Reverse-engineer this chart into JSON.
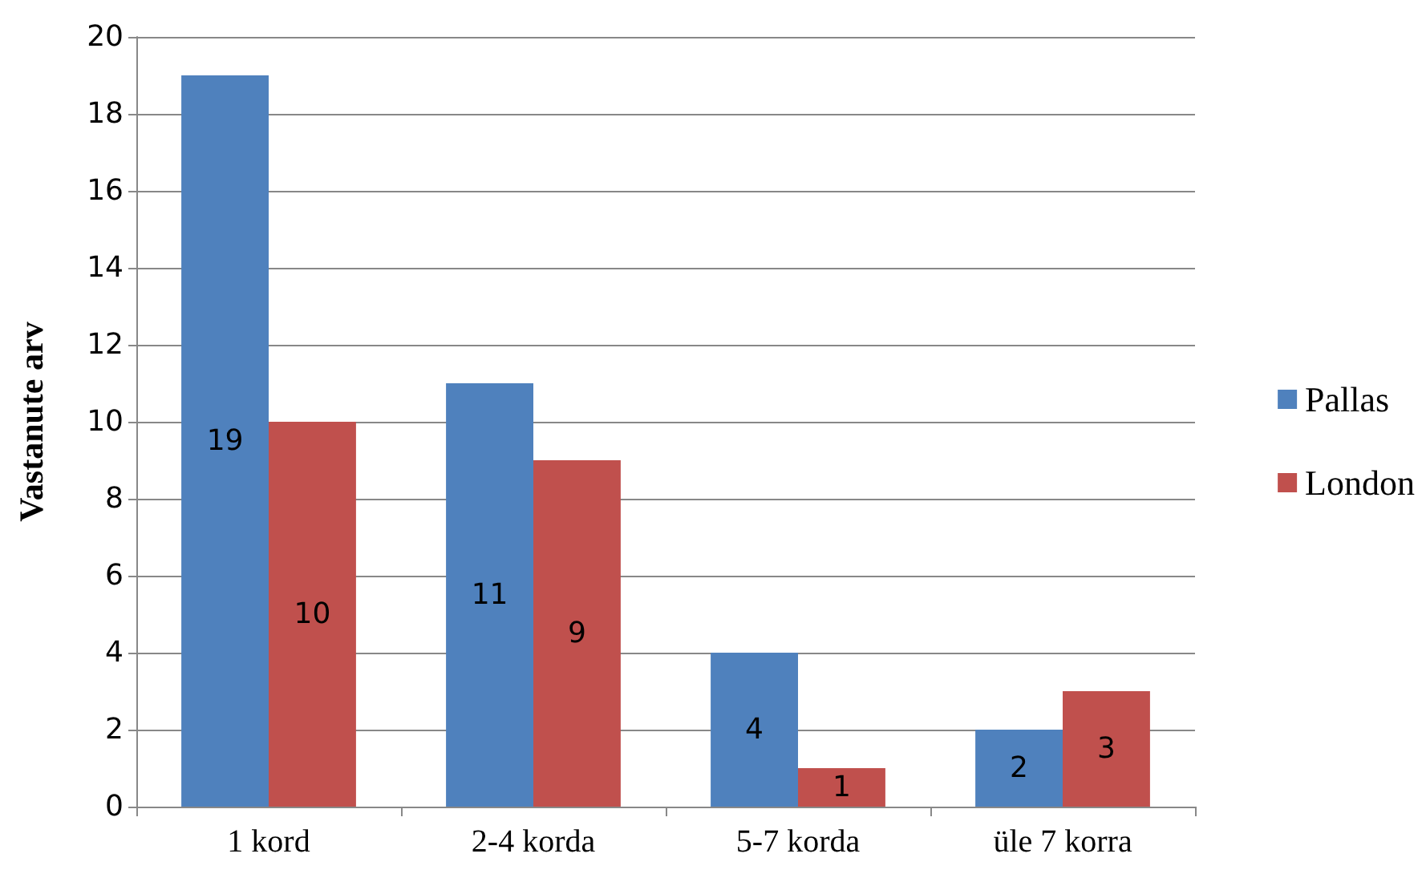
{
  "chart_data": {
    "type": "bar",
    "ylabel": "Vastanute arv",
    "categories": [
      "1 kord",
      "2-4 korda",
      "5-7 korda",
      "üle 7 korra"
    ],
    "series": [
      {
        "name": "Pallas",
        "color": "#4f81bd",
        "values": [
          19,
          11,
          4,
          2
        ]
      },
      {
        "name": "London",
        "color": "#c0504d",
        "values": [
          10,
          9,
          1,
          3
        ]
      }
    ],
    "ylim": [
      0,
      20
    ],
    "yticks": [
      0,
      2,
      4,
      6,
      8,
      10,
      12,
      14,
      16,
      18,
      20
    ],
    "grid": "y",
    "legend": "right",
    "data_labels": true
  }
}
